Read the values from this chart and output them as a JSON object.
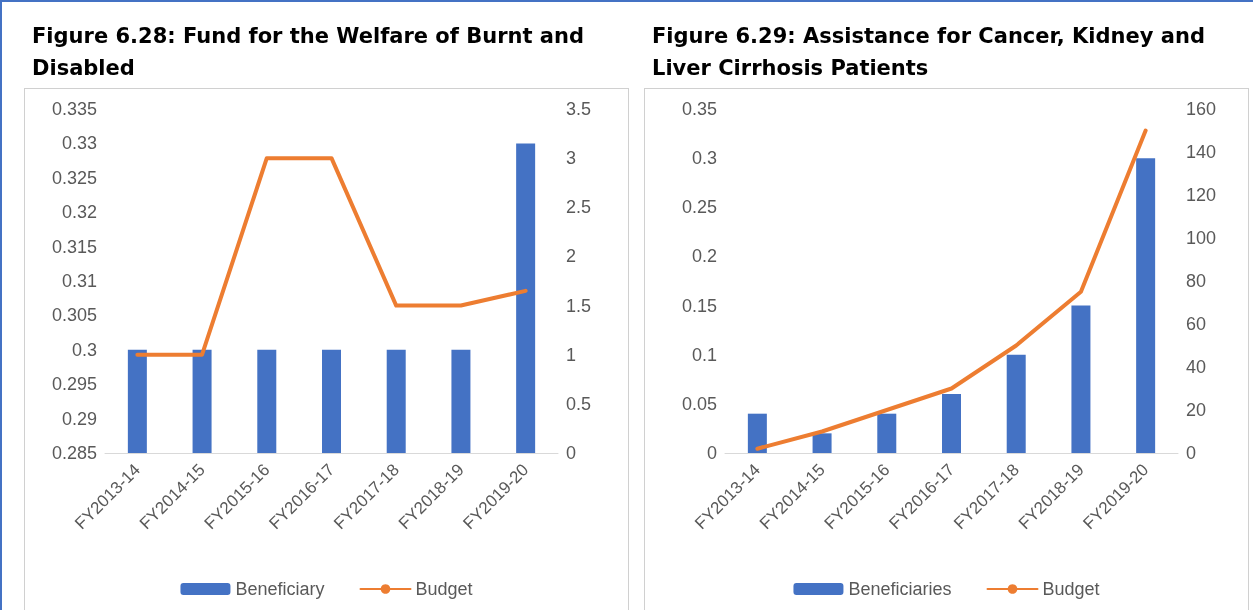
{
  "chart_data": [
    {
      "type": "bar",
      "title": "Figure 6.28: Fund for the Welfare of Burnt and Disabled",
      "categories": [
        "FY2013-14",
        "FY2014-15",
        "FY2015-16",
        "FY2016-17",
        "FY2017-18",
        "FY2018-19",
        "FY2019-20"
      ],
      "series": [
        {
          "name": "Beneficiary",
          "color": "#4472c4",
          "values": [
            0.3,
            0.3,
            0.3,
            0.3,
            0.3,
            0.3,
            0.33
          ]
        },
        {
          "name": "Budget",
          "type": "line",
          "axis": "y2",
          "color": "#ed7d31",
          "values": [
            1,
            1,
            3,
            3,
            1.5,
            1.5,
            1.65
          ]
        }
      ],
      "ylim": [
        0.285,
        0.335
      ],
      "yticks": [
        0.285,
        0.29,
        0.295,
        0.3,
        0.305,
        0.31,
        0.315,
        0.32,
        0.325,
        0.33,
        0.335
      ],
      "y2lim": [
        0,
        3.5
      ],
      "y2ticks": [
        0,
        0.5,
        1,
        1.5,
        2,
        2.5,
        3,
        3.5
      ],
      "legend": "bottom",
      "marker": "none",
      "line_style": "solid"
    },
    {
      "type": "bar",
      "title": "Figure 6.29: Assistance for Cancer, Kidney and Liver Cirrhosis Patients",
      "categories": [
        "FY2013-14",
        "FY2014-15",
        "FY2015-16",
        "FY2016-17",
        "FY2017-18",
        "FY2018-19",
        "FY2019-20"
      ],
      "series": [
        {
          "name": "Beneficiaries",
          "color": "#4472c4",
          "values": [
            0.04,
            0.02,
            0.04,
            0.06,
            0.1,
            0.15,
            0.3
          ]
        },
        {
          "name": "Budget",
          "type": "line",
          "axis": "y2",
          "color": "#ed7d31",
          "values": [
            2,
            10,
            20,
            30,
            50,
            75,
            150
          ]
        }
      ],
      "ylim": [
        0,
        0.35
      ],
      "yticks": [
        0,
        0.05,
        0.1,
        0.15,
        0.2,
        0.25,
        0.3,
        0.35
      ],
      "y2lim": [
        0,
        160
      ],
      "y2ticks": [
        0,
        20,
        40,
        60,
        80,
        100,
        120,
        140,
        160
      ],
      "legend": "bottom",
      "marker": "none",
      "line_style": "solid"
    }
  ]
}
